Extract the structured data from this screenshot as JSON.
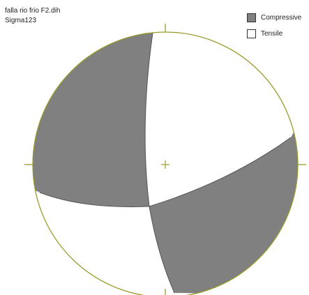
{
  "header": {
    "filename": "falla rio frio F2.dih",
    "subtitle": "Sigma123"
  },
  "legend": {
    "items": [
      {
        "label": "Compressive",
        "color": "#808080"
      },
      {
        "label": "Tensile",
        "color": "#ffffff"
      }
    ]
  },
  "colors": {
    "net_outline": "#9a9a2a",
    "compressive": "#808080",
    "tensile": "#ffffff",
    "nodal_line": "#555555"
  }
}
